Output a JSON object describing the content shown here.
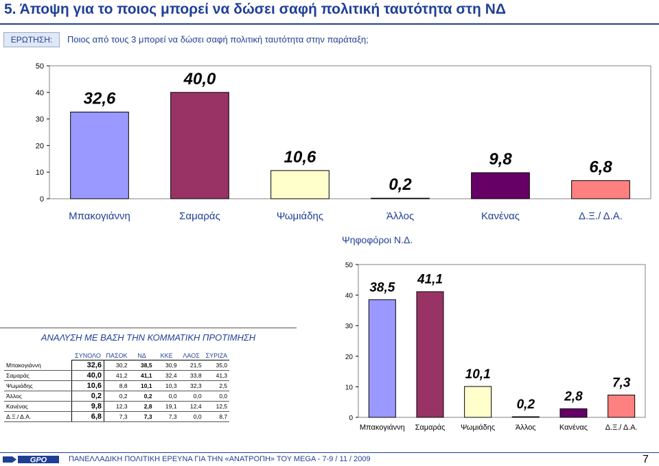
{
  "header": {
    "title": "5.  Άποψη για το ποιος μπορεί να δώσει σαφή πολιτική ταυτότητα στη ΝΔ",
    "question_label": "ΕΡΩΤΗΣΗ:",
    "question_text": "Ποιος από τους 3 μπορεί να δώσει σαφή πολιτική ταυτότητα στην παράταξη;"
  },
  "chart_data": [
    {
      "type": "bar",
      "categories": [
        "Μπακογιάννη",
        "Σαμαράς",
        "Ψωμιάδης",
        "Άλλος",
        "Κανένας",
        "Δ.Ξ./ Δ.Α."
      ],
      "values": [
        32.6,
        40.0,
        10.6,
        0.2,
        9.8,
        6.8
      ],
      "value_labels": [
        "32,6",
        "40,0",
        "10,6",
        "0,2",
        "9,8",
        "6,8"
      ],
      "yticks": [
        "0",
        "10",
        "20",
        "30",
        "40",
        "50"
      ],
      "ylim": [
        0,
        50
      ],
      "colors": [
        "#9999ff",
        "#993366",
        "#ffffcc",
        "#ccffff",
        "#660066",
        "#ff8080"
      ],
      "title": "",
      "xlabel": "",
      "ylabel": ""
    },
    {
      "type": "bar",
      "title": "Ψηφοφόροι Ν.Δ.",
      "categories": [
        "Μπακογιάννη",
        "Σαμαράς",
        "Ψωμιάδης",
        "Άλλος",
        "Κανένας",
        "Δ.Ξ./ Δ.Α."
      ],
      "values": [
        38.5,
        41.1,
        10.1,
        0.2,
        2.8,
        7.3
      ],
      "value_labels": [
        "38,5",
        "41,1",
        "10,1",
        "0,2",
        "2,8",
        "7,3"
      ],
      "yticks": [
        "0",
        "10",
        "20",
        "30",
        "40",
        "50"
      ],
      "ylim": [
        0,
        50
      ],
      "colors": [
        "#9999ff",
        "#993366",
        "#ffffcc",
        "#ccffff",
        "#660066",
        "#ff8080"
      ],
      "xlabel": "",
      "ylabel": ""
    },
    {
      "type": "table",
      "title": "ΑΝΑΛΥΣΗ ΜΕ ΒΑΣΗ ΤΗΝ ΚΟΜΜΑΤΙΚΗ ΠΡΟΤΙΜΗΣΗ",
      "columns": [
        "ΣΥΝΟΛΟ",
        "ΠΑΣΟΚ",
        "ΝΔ",
        "ΚΚΕ",
        "ΛΑΟΣ",
        "ΣΥΡΙΖΑ"
      ],
      "rows": [
        {
          "label": "Μπακογιάννη",
          "total": "32,6",
          "values": [
            "30,2",
            "38,5",
            "30,9",
            "21,5",
            "35,0"
          ]
        },
        {
          "label": "Σαμαράς",
          "total": "40,0",
          "values": [
            "41,2",
            "41,1",
            "32,4",
            "33,8",
            "41,3"
          ]
        },
        {
          "label": "Ψωμιάδης",
          "total": "10,6",
          "values": [
            "8,8",
            "10,1",
            "10,3",
            "32,3",
            "2,5"
          ]
        },
        {
          "label": "Άλλος",
          "total": "0,2",
          "values": [
            "0,2",
            "0,2",
            "0,0",
            "0,0",
            "0,0"
          ]
        },
        {
          "label": "Κανένας",
          "total": "9,8",
          "values": [
            "12,3",
            "2,8",
            "19,1",
            "12,4",
            "12,5"
          ]
        },
        {
          "label": "Δ.Ξ./ Δ.Α.",
          "total": "6,8",
          "values": [
            "7,3",
            "7,3",
            "7,3",
            "0,0",
            "8,7"
          ]
        }
      ]
    }
  ],
  "footer": {
    "logo_text": "GPO",
    "text": "ΠΑΝΕΛΛΑΔΙΚΗ ΠΟΛΙΤΙΚΗ ΕΡΕΥΝΑ ΓΙΑ ΤΗΝ «ΑΝΑΤΡΟΠΗ» ΤΟΥ MEGA  -  7-9  / 11 / 2009",
    "page": "7"
  }
}
